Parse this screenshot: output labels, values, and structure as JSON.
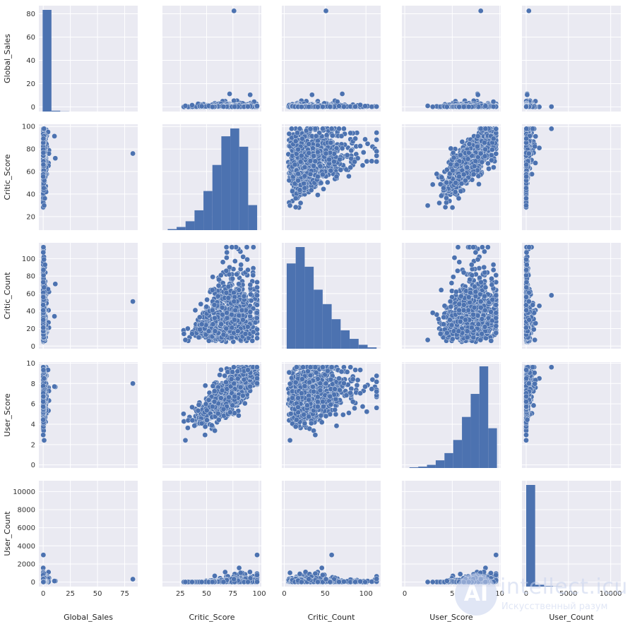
{
  "chart_data": {
    "type": "scatter",
    "kind": "pairplot",
    "variables": [
      "Global_Sales",
      "Critic_Score",
      "Critic_Count",
      "User_Score",
      "User_Count"
    ],
    "style": {
      "background": "#eaeaf2",
      "grid": "#ffffff",
      "mark_color": "#4c72b0",
      "diag_kind": "histogram",
      "grid_on": true
    },
    "axes": {
      "Global_Sales": {
        "ticks": [
          0,
          20,
          40,
          60,
          80
        ],
        "range": [
          -4,
          87
        ],
        "xticks": [
          0,
          25,
          50,
          75
        ]
      },
      "Critic_Score": {
        "ticks": [
          20,
          40,
          60,
          80,
          100
        ],
        "range": [
          8,
          102
        ],
        "xticks": [
          25,
          50,
          75,
          100
        ]
      },
      "Critic_Count": {
        "ticks": [
          0,
          20,
          40,
          60,
          80,
          100,
          120
        ],
        "range": [
          -3,
          118
        ],
        "xticks": [
          0,
          50,
          100
        ]
      },
      "User_Score": {
        "ticks": [
          0,
          2,
          4,
          6,
          8,
          10
        ],
        "range": [
          -0.3,
          10.1
        ],
        "xticks": [
          0,
          5,
          10
        ]
      },
      "User_Count": {
        "ticks": [
          0,
          2000,
          4000,
          6000,
          8000,
          10000
        ],
        "range": [
          -500,
          11200
        ],
        "xticks": [
          0,
          5000,
          10000
        ]
      }
    },
    "histograms": {
      "Global_Sales": {
        "bin_edges": [
          -0.5,
          7.6,
          15.7,
          23.8
        ],
        "counts": [
          6800,
          55,
          12
        ]
      },
      "Critic_Score": {
        "bin_edges": [
          13,
          21.5,
          30,
          38.5,
          47,
          55.5,
          64,
          72.5,
          81,
          89.5,
          98
        ],
        "counts": [
          20,
          60,
          170,
          380,
          750,
          1250,
          1800,
          1950,
          1600,
          480
        ]
      },
      "Critic_Count": {
        "bin_edges": [
          3,
          14,
          25,
          36,
          47,
          58,
          69,
          80,
          91,
          102,
          113
        ],
        "counts": [
          1300,
          1550,
          1250,
          900,
          680,
          450,
          280,
          150,
          60,
          20
        ]
      },
      "User_Score": {
        "bin_edges": [
          0.5,
          1.42,
          2.34,
          3.26,
          4.18,
          5.1,
          6.02,
          6.94,
          7.86,
          8.78,
          9.7
        ],
        "counts": [
          15,
          30,
          70,
          170,
          330,
          620,
          1130,
          1640,
          2250,
          880
        ]
      },
      "User_Count": {
        "bin_edges": [
          4,
          1064,
          2124,
          3184,
          4244
        ],
        "counts": [
          6700,
          120,
          35,
          10
        ]
      }
    },
    "notable_points": [
      {
        "Global_Sales": 82.5,
        "Critic_Score": 76,
        "Critic_Count": 51,
        "User_Score": 8.0,
        "User_Count": 322
      }
    ]
  },
  "watermark": {
    "name": "intellect.icu",
    "sub": "Искусственный разум"
  }
}
